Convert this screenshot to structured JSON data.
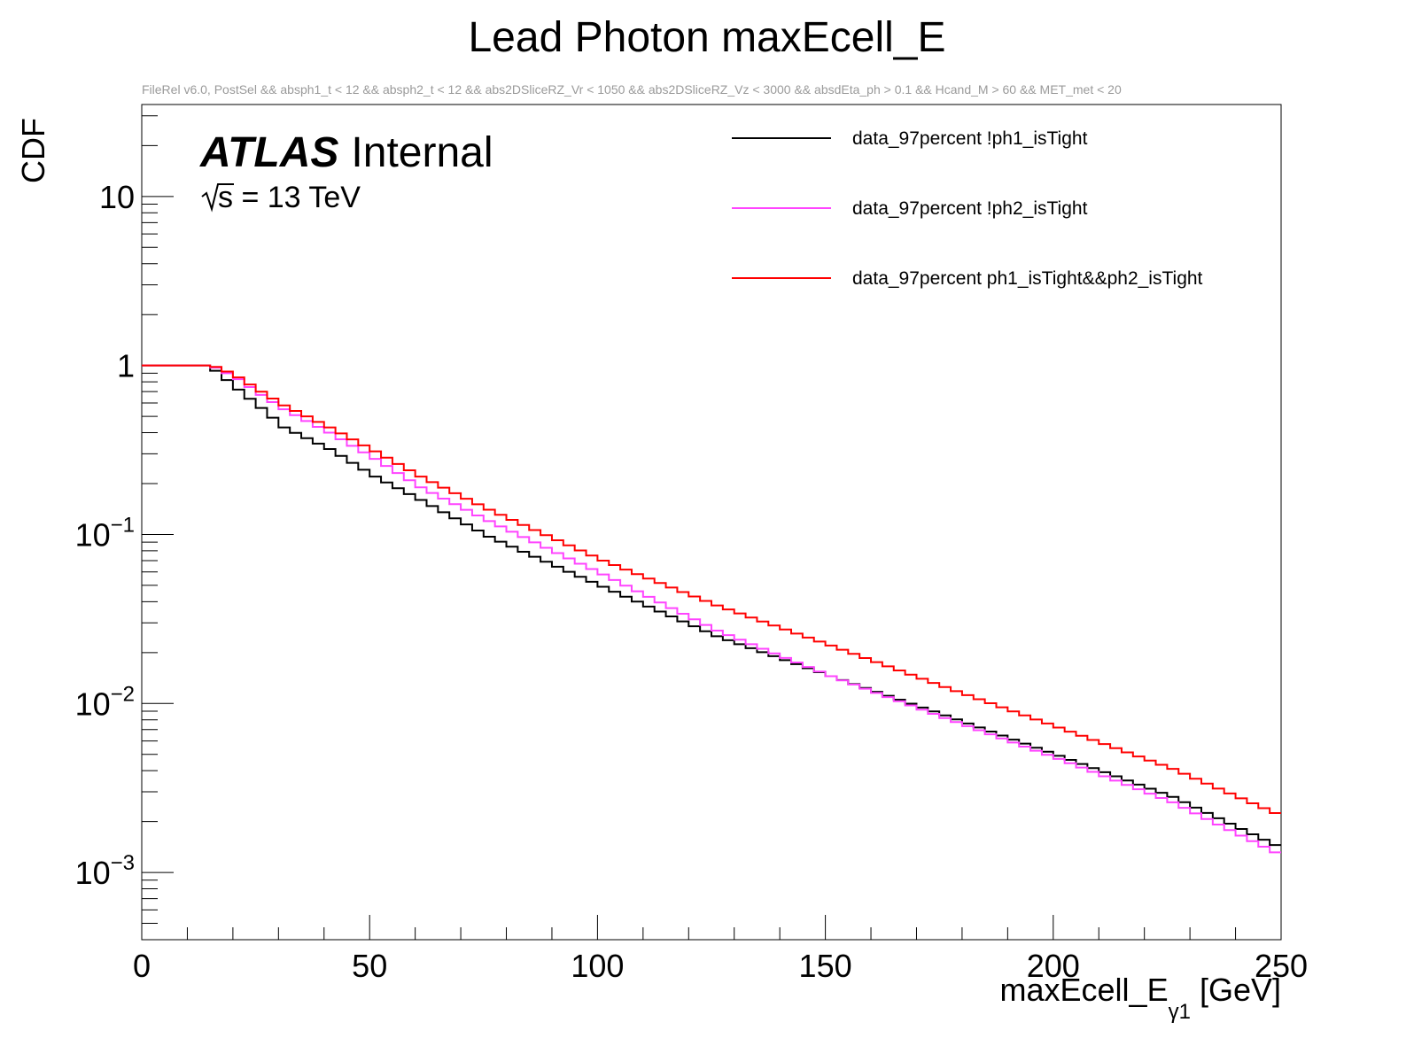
{
  "chart_data": {
    "type": "line",
    "title": "Lead Photon maxEcell_E",
    "subtitle": "FileRel v6.0, PostSel &&  absph1_t < 12 && absph2_t < 12 && abs2DSliceRZ_Vr < 1050 && abs2DSliceRZ_Vz < 3000 && absdEta_ph > 0.1 && Hcand_M > 60 && MET_met < 20",
    "xlabel": {
      "main": "maxEcell_E",
      "sub": "γ1",
      "unit": "[GeV]"
    },
    "ylabel": "CDF",
    "xlim": [
      0,
      250
    ],
    "ylim": [
      0.0004,
      35
    ],
    "yscale": "log",
    "x_ticks": [
      "0",
      "50",
      "100",
      "150",
      "200",
      "250"
    ],
    "x_tick_values": [
      0,
      50,
      100,
      150,
      200,
      250
    ],
    "y_ticks": [
      {
        "value": 10,
        "base": "10",
        "exp": ""
      },
      {
        "value": 1,
        "base": "1",
        "exp": ""
      },
      {
        "value": 0.1,
        "base": "10",
        "exp": "−1"
      },
      {
        "value": 0.01,
        "base": "10",
        "exp": "−2"
      },
      {
        "value": 0.001,
        "base": "10",
        "exp": "−3"
      }
    ],
    "atlas_label": {
      "bold": "ATLAS",
      "normal": "Internal"
    },
    "energy_label": {
      "sqrt": "s",
      "text": " = 13 TeV"
    },
    "step_width": 2.5,
    "series": [
      {
        "name": "data_97percent !ph1_isTight",
        "color": "#000000",
        "anchors": [
          [
            0,
            1.0
          ],
          [
            12.5,
            1.0
          ],
          [
            15,
            0.93
          ],
          [
            17.5,
            0.82
          ],
          [
            20,
            0.72
          ],
          [
            25,
            0.56
          ],
          [
            30,
            0.43
          ],
          [
            40,
            0.32
          ],
          [
            50,
            0.22
          ],
          [
            60,
            0.16
          ],
          [
            75,
            0.097
          ],
          [
            100,
            0.049
          ],
          [
            125,
            0.025
          ],
          [
            150,
            0.0145
          ],
          [
            175,
            0.0085
          ],
          [
            200,
            0.0049
          ],
          [
            225,
            0.0028
          ],
          [
            250,
            0.00135
          ]
        ]
      },
      {
        "name": "data_97percent !ph2_isTight",
        "color": "#ff44ff",
        "anchors": [
          [
            0,
            1.0
          ],
          [
            12.5,
            1.0
          ],
          [
            15,
            0.97
          ],
          [
            17.5,
            0.9
          ],
          [
            20,
            0.83
          ],
          [
            25,
            0.67
          ],
          [
            30,
            0.55
          ],
          [
            40,
            0.4
          ],
          [
            50,
            0.28
          ],
          [
            60,
            0.19
          ],
          [
            75,
            0.12
          ],
          [
            100,
            0.058
          ],
          [
            125,
            0.027
          ],
          [
            150,
            0.0145
          ],
          [
            175,
            0.0082
          ],
          [
            200,
            0.0047
          ],
          [
            225,
            0.0026
          ],
          [
            250,
            0.00122
          ]
        ]
      },
      {
        "name": "data_97percent ph1_isTight&&ph2_isTight",
        "color": "#ff0000",
        "anchors": [
          [
            0,
            1.0
          ],
          [
            12.5,
            1.0
          ],
          [
            15,
            0.98
          ],
          [
            17.5,
            0.92
          ],
          [
            20,
            0.85
          ],
          [
            25,
            0.7
          ],
          [
            30,
            0.58
          ],
          [
            40,
            0.43
          ],
          [
            50,
            0.31
          ],
          [
            60,
            0.22
          ],
          [
            75,
            0.14
          ],
          [
            100,
            0.07
          ],
          [
            125,
            0.038
          ],
          [
            150,
            0.022
          ],
          [
            175,
            0.0125
          ],
          [
            200,
            0.0072
          ],
          [
            225,
            0.0041
          ],
          [
            250,
            0.0021
          ]
        ]
      }
    ]
  }
}
